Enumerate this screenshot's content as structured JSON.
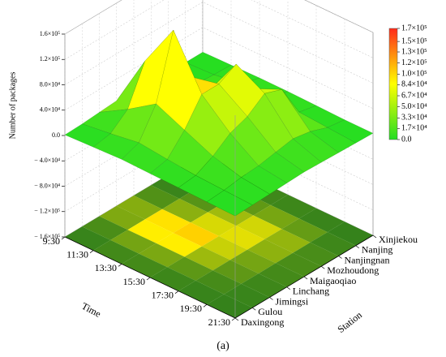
{
  "chart_data": {
    "type": "surface3d",
    "zlabel": "Number of packages",
    "xlabel": "Time",
    "ylabel": "Station",
    "caption": "(a)",
    "x": [
      "9:30",
      "11:30",
      "13:30",
      "15:30",
      "17:30",
      "19:30",
      "21:30"
    ],
    "y": [
      "Daxingong",
      "Gulou",
      "Jimingsi",
      "Linchang",
      "Maigaoqiao",
      "Mozhoudong",
      "Nanjingnan",
      "Nanjing",
      "Xinjiekou"
    ],
    "z": [
      [
        1000,
        2000,
        4000,
        6000,
        4000,
        2000,
        1000,
        1000,
        1000
      ],
      [
        3000,
        8000,
        30000,
        90000,
        40000,
        10000,
        5000,
        3000,
        2000
      ],
      [
        5000,
        15000,
        60000,
        160000,
        70000,
        30000,
        20000,
        10000,
        3000
      ],
      [
        4000,
        10000,
        40000,
        80000,
        80000,
        95000,
        40000,
        10000,
        3000
      ],
      [
        3000,
        6000,
        20000,
        40000,
        50000,
        70000,
        60000,
        8000,
        2000
      ],
      [
        2000,
        4000,
        8000,
        10000,
        15000,
        20000,
        15000,
        5000,
        1000
      ],
      [
        1000,
        2000,
        3000,
        4000,
        5000,
        4000,
        3000,
        2000,
        1000
      ]
    ],
    "zlim": [
      -160000,
      160000
    ],
    "zticks": [
      {
        "value": 160000,
        "label": "1.6×10⁵"
      },
      {
        "value": 120000,
        "label": "1.2×10⁵"
      },
      {
        "value": 80000,
        "label": "8.0×10⁴"
      },
      {
        "value": 40000,
        "label": "4.0×10⁴"
      },
      {
        "value": 0,
        "label": "0.0"
      },
      {
        "value": -40000,
        "label": "− 4.0×10⁴"
      },
      {
        "value": -80000,
        "label": "− 8.0×10⁴"
      },
      {
        "value": -120000,
        "label": "− 1.2×10⁵"
      },
      {
        "value": -160000,
        "label": "− 1.6×10⁵"
      }
    ],
    "clim": [
      0,
      170000
    ],
    "cticks": [
      {
        "value": 170000,
        "label": "1.7×10⁵"
      },
      {
        "value": 150000,
        "label": "1.5×10⁵"
      },
      {
        "value": 134000,
        "label": "1.3×10⁵"
      },
      {
        "value": 117000,
        "label": "1.2×10⁵"
      },
      {
        "value": 100000,
        "label": "1.0×10⁵"
      },
      {
        "value": 84000,
        "label": "8.4×10⁴"
      },
      {
        "value": 67000,
        "label": "6.7×10⁴"
      },
      {
        "value": 50000,
        "label": "5.0×10⁴"
      },
      {
        "value": 33000,
        "label": "3.3×10⁴"
      },
      {
        "value": 17000,
        "label": "1.7×10⁴"
      },
      {
        "value": 0,
        "label": "0.0"
      }
    ],
    "colormap": [
      "#22dd22",
      "#ffff00",
      "#ff2a1a"
    ],
    "floor_colormap": [
      "#2f7f1c",
      "#ffee00",
      "#ff2a00"
    ],
    "grid": true
  }
}
